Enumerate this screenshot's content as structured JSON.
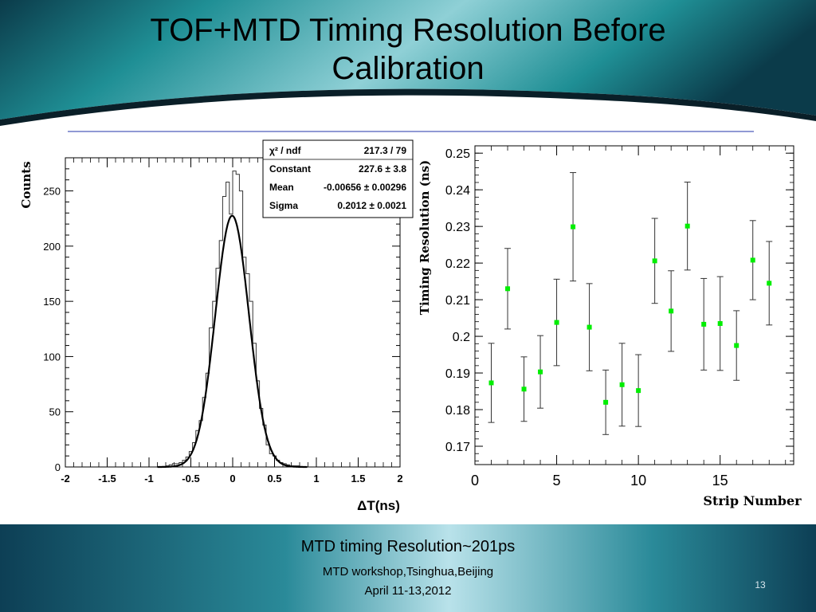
{
  "slide": {
    "title": "TOF+MTD Timing Resolution Before Calibration",
    "caption": "MTD timing Resolution~201ps",
    "venue": "MTD workshop,Tsinghua,Beijing",
    "date": "April 11-13,2012",
    "page_number": "13"
  },
  "colors": {
    "header_teal": "#1f8f95",
    "header_dark": "#0b3b4a",
    "footer_teal": "#2a8a99",
    "marker_green": "#00ee00",
    "separator_blue": "#2233aa"
  },
  "chart_data": [
    {
      "type": "histogram",
      "xlabel": "ΔT(ns)",
      "ylabel": "Counts",
      "xlim": [
        -2,
        2
      ],
      "ylim": [
        0,
        280
      ],
      "x_ticks": [
        "-2",
        "-1.5",
        "-1",
        "-0.5",
        "0",
        "0.5",
        "1",
        "1.5",
        "2"
      ],
      "y_ticks": [
        "0",
        "50",
        "100",
        "150",
        "200",
        "250"
      ],
      "fit": {
        "function": "gaussian",
        "constant": 227.6,
        "mean": -0.00656,
        "sigma": 0.2012
      },
      "stats_box": {
        "rows": [
          {
            "label": "χ² / ndf",
            "value": "217.3 / 79"
          },
          {
            "label": "Constant",
            "value": "227.6 ± 3.8"
          },
          {
            "label": "Mean",
            "value": "-0.00656 ± 0.00296"
          },
          {
            "label": "Sigma",
            "value": "0.2012 ± 0.0021"
          }
        ]
      },
      "bin_edges": [
        -0.8,
        -0.76,
        -0.72,
        -0.68,
        -0.64,
        -0.6,
        -0.56,
        -0.52,
        -0.48,
        -0.44,
        -0.4,
        -0.36,
        -0.32,
        -0.28,
        -0.24,
        -0.2,
        -0.16,
        -0.12,
        -0.08,
        -0.04,
        0.0,
        0.04,
        0.08,
        0.12,
        0.16,
        0.2,
        0.24,
        0.28,
        0.32,
        0.36,
        0.4,
        0.44,
        0.48,
        0.52,
        0.56,
        0.6,
        0.64,
        0.68,
        0.72,
        0.76,
        0.8
      ],
      "bin_counts": [
        1,
        2,
        3,
        3,
        4,
        6,
        9,
        14,
        22,
        33,
        42,
        63,
        85,
        126,
        150,
        180,
        205,
        245,
        258,
        229,
        268,
        265,
        250,
        190,
        175,
        150,
        112,
        78,
        53,
        38,
        20,
        12,
        10,
        6,
        4,
        3,
        2,
        1,
        1,
        1
      ]
    },
    {
      "type": "scatter",
      "error_bars": true,
      "xlabel": "Strip Number",
      "ylabel": "Timing Resolution (ns)",
      "xlim": [
        0,
        19.5
      ],
      "ylim": [
        0.165,
        0.252
      ],
      "x_ticks": [
        "0",
        "5",
        "10",
        "15"
      ],
      "y_ticks": [
        "0.17",
        "0.18",
        "0.19",
        "0.2",
        "0.21",
        "0.22",
        "0.23",
        "0.24",
        "0.25"
      ],
      "marker_color": "#00ee00",
      "x": [
        1,
        2,
        3,
        4,
        5,
        6,
        7,
        8,
        9,
        10,
        11,
        12,
        13,
        14,
        15,
        16,
        17,
        18
      ],
      "y": [
        0.1873,
        0.213,
        0.1856,
        0.1903,
        0.2038,
        0.2299,
        0.2025,
        0.182,
        0.1868,
        0.1852,
        0.2206,
        0.2069,
        0.2301,
        0.2033,
        0.2035,
        0.1975,
        0.2208,
        0.2145
      ],
      "y_err": [
        0.0108,
        0.011,
        0.0088,
        0.0099,
        0.0118,
        0.0148,
        0.0119,
        0.0088,
        0.0113,
        0.0098,
        0.0116,
        0.011,
        0.012,
        0.0125,
        0.0128,
        0.0095,
        0.0108,
        0.0114
      ]
    }
  ]
}
